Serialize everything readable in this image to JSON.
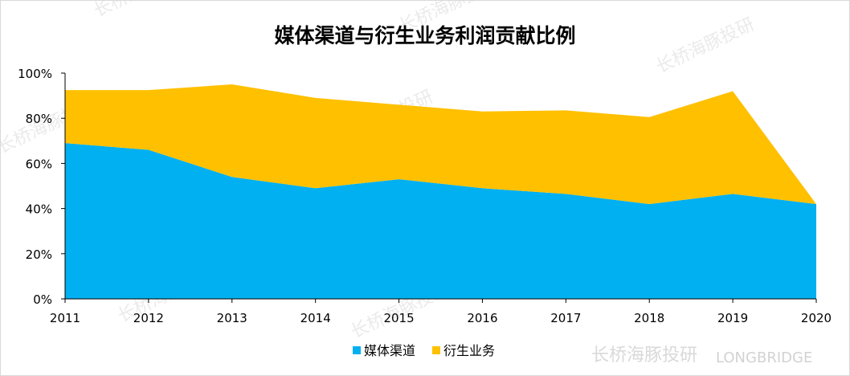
{
  "chart_data": {
    "type": "area",
    "stacked": true,
    "title": "媒体渠道与衍生业务利润贡献比例",
    "x": [
      "2011",
      "2012",
      "2013",
      "2014",
      "2015",
      "2016",
      "2017",
      "2018",
      "2019",
      "2020"
    ],
    "series": [
      {
        "name": "媒体渠道",
        "color": "#00b0f0",
        "values": [
          69,
          66,
          54,
          49,
          53,
          49,
          46.5,
          42,
          46.5,
          42
        ]
      },
      {
        "name": "衍生业务",
        "color": "#ffc000",
        "values": [
          23.5,
          26.5,
          41,
          40,
          33,
          34,
          37,
          38.5,
          45.5,
          0
        ]
      }
    ],
    "ylim": [
      0,
      100
    ],
    "y_ticks": [
      "0%",
      "20%",
      "40%",
      "60%",
      "80%",
      "100%"
    ],
    "grid": false,
    "legend_position": "bottom"
  },
  "watermark": {
    "text_cn": "长桥海豚投研",
    "text_en": "LONGBRIDGE"
  }
}
